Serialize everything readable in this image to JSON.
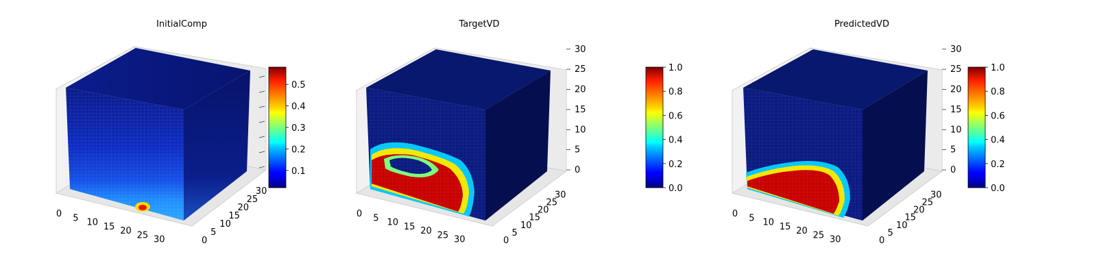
{
  "colormap": "jet",
  "chart_data": [
    {
      "type": "3d-voxel",
      "title": "InitialComp",
      "axes": {
        "x": {
          "range": [
            0,
            32
          ],
          "ticks": [
            0,
            5,
            10,
            15,
            20,
            25,
            30
          ]
        },
        "y": {
          "range": [
            0,
            32
          ],
          "ticks": [
            0,
            5,
            10,
            15,
            20,
            25,
            30
          ]
        },
        "z": {
          "range": [
            0,
            32
          ],
          "ticks": [],
          "tick_marks": true
        }
      },
      "colorbar": {
        "min": 0.02,
        "max": 0.58,
        "ticks": [
          "0.1",
          "0.2",
          "0.3",
          "0.4",
          "0.5"
        ],
        "tick_values": [
          0.1,
          0.2,
          0.3,
          0.4,
          0.5
        ]
      },
      "front_face_description_values": {
        "background": 0.03,
        "bottom_band": 0.18,
        "hotspot_max": 0.58
      }
    },
    {
      "type": "3d-voxel",
      "title": "TargetVD",
      "axes": {
        "x": {
          "range": [
            0,
            32
          ],
          "ticks": [
            0,
            5,
            10,
            15,
            20,
            25,
            30
          ]
        },
        "y": {
          "range": [
            0,
            32
          ],
          "ticks": [
            0,
            5,
            10,
            15,
            20,
            25,
            30
          ]
        },
        "z": {
          "range": [
            0,
            32
          ],
          "ticks": [
            0,
            5,
            10,
            15,
            20,
            25,
            30
          ]
        }
      },
      "colorbar": {
        "min": 0.0,
        "max": 1.0,
        "ticks": [
          "0.0",
          "0.2",
          "0.4",
          "0.6",
          "0.8",
          "1.0"
        ],
        "tick_values": [
          0.0,
          0.2,
          0.4,
          0.6,
          0.8,
          1.0
        ]
      }
    },
    {
      "type": "3d-voxel",
      "title": "PredictedVD",
      "axes": {
        "x": {
          "range": [
            0,
            32
          ],
          "ticks": [
            0,
            5,
            10,
            15,
            20,
            25,
            30
          ]
        },
        "y": {
          "range": [
            0,
            32
          ],
          "ticks": [
            0,
            5,
            10,
            15,
            20,
            25,
            30
          ]
        },
        "z": {
          "range": [
            0,
            32
          ],
          "ticks": [
            0,
            5,
            10,
            15,
            20,
            25,
            30
          ]
        }
      },
      "colorbar": {
        "min": 0.0,
        "max": 1.0,
        "ticks": [
          "0.0",
          "0.2",
          "0.4",
          "0.6",
          "0.8",
          "1.0"
        ],
        "tick_values": [
          0.0,
          0.2,
          0.4,
          0.6,
          0.8,
          1.0
        ]
      }
    }
  ]
}
